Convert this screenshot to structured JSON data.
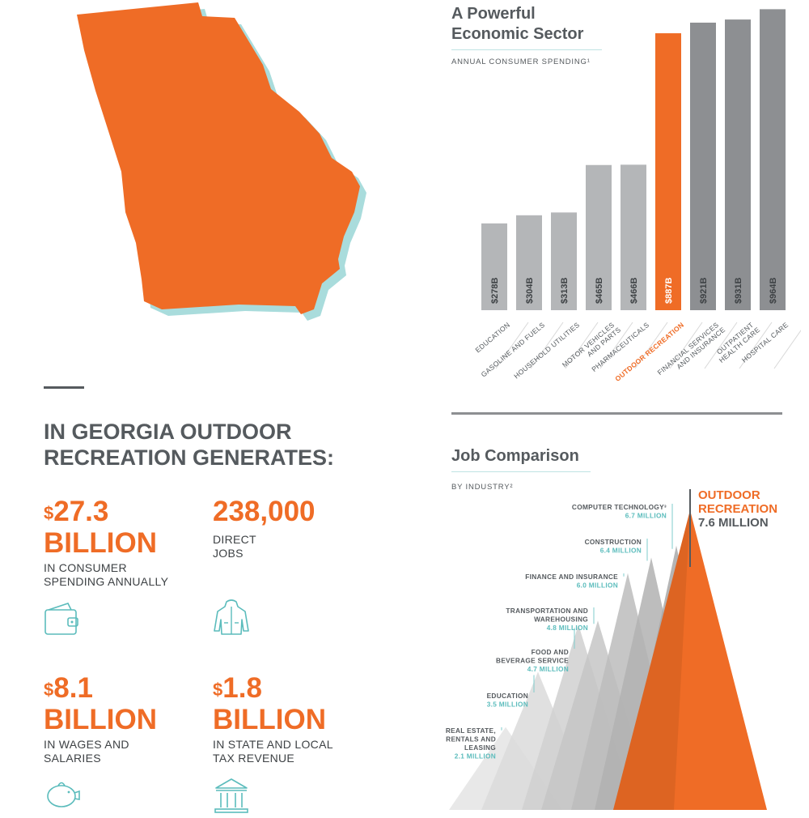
{
  "colors": {
    "orange": "#ef6c26",
    "gray_dark": "#555a5e",
    "gray_bar": "#b4b6b8",
    "gray_bar_dark": "#8d8f92",
    "teal": "#5bbcbc"
  },
  "headline": {
    "line1": "IN GEORGIA OUTDOOR",
    "line2": "RECREATION GENERATES:"
  },
  "stats": [
    {
      "dollar": "$",
      "amount": "27.3",
      "unit": "BILLION",
      "caption1": "IN CONSUMER",
      "caption2": "SPENDING ANNUALLY",
      "icon": "wallet-icon"
    },
    {
      "dollar": "",
      "amount": "238,000",
      "unit": "",
      "caption1": "DIRECT",
      "caption2": "JOBS",
      "icon": "rain-jacket-icon"
    },
    {
      "dollar": "$",
      "amount": "8.1",
      "unit": "BILLION",
      "caption1": "IN WAGES AND",
      "caption2": "SALARIES",
      "icon": "piggy-bank-icon"
    },
    {
      "dollar": "$",
      "amount": "1.8",
      "unit": "BILLION",
      "caption1": "IN STATE AND LOCAL",
      "caption2": "TAX REVENUE",
      "icon": "government-building-icon"
    }
  ],
  "chart_data": [
    {
      "type": "bar",
      "title": "A Powerful Economic Sector",
      "title_line1": "A Powerful",
      "title_line2": "Economic Sector",
      "subtitle": "ANNUAL CONSUMER SPENDING¹",
      "unit": "billion USD",
      "categories": [
        "EDUCATION",
        "GASOLINE AND FUELS",
        "HOUSEHOLD UTILITIES",
        "MOTOR VEHICLES AND PARTS",
        "PHARMACEUTICALS",
        "OUTDOOR RECREATION",
        "FINANCIAL SERVICES AND INSURANCE",
        "OUTPATIENT HEALTH CARE",
        "HOSPITAL CARE"
      ],
      "category_lines": [
        [
          "EDUCATION"
        ],
        [
          "GASOLINE AND FUELS"
        ],
        [
          "HOUSEHOLD UTILITIES"
        ],
        [
          "MOTOR VEHICLES",
          "AND PARTS"
        ],
        [
          "PHARMACEUTICALS"
        ],
        [
          "OUTDOOR RECREATION"
        ],
        [
          "FINANCIAL SERVICES",
          "AND INSURANCE"
        ],
        [
          "OUTPATIENT",
          "HEALTH CARE"
        ],
        [
          "HOSPITAL CARE"
        ]
      ],
      "values": [
        278,
        304,
        313,
        465,
        466,
        887,
        921,
        931,
        964
      ],
      "value_labels": [
        "$278B",
        "$304B",
        "$313B",
        "$465B",
        "$466B",
        "$887B",
        "$921B",
        "$931B",
        "$964B"
      ],
      "highlight": "OUTDOOR RECREATION"
    },
    {
      "type": "area",
      "title": "Job Comparison",
      "subtitle": "BY INDUSTRY²",
      "unit": "million jobs",
      "series": [
        {
          "name_lines": [
            "REAL ESTATE,",
            "RENTALS AND",
            "LEASING"
          ],
          "value": 2.1,
          "value_label": "2.1 MILLION"
        },
        {
          "name_lines": [
            "EDUCATION"
          ],
          "value": 3.5,
          "value_label": "3.5 MILLION"
        },
        {
          "name_lines": [
            "FOOD AND",
            "BEVERAGE SERVICE"
          ],
          "value": 4.7,
          "value_label": "4.7 MILLION"
        },
        {
          "name_lines": [
            "TRANSPORTATION AND",
            "WAREHOUSING"
          ],
          "value": 4.8,
          "value_label": "4.8 MILLION"
        },
        {
          "name_lines": [
            "FINANCE AND INSURANCE"
          ],
          "value": 6.0,
          "value_label": "6.0 MILLION"
        },
        {
          "name_lines": [
            "CONSTRUCTION"
          ],
          "value": 6.4,
          "value_label": "6.4 MILLION"
        },
        {
          "name_lines": [
            "COMPUTER TECHNOLOGY³"
          ],
          "value": 6.7,
          "value_label": "6.7 MILLION"
        }
      ],
      "highlight": {
        "name_line1": "OUTDOOR",
        "name_line2": "RECREATION",
        "value": 7.6,
        "value_label": "7.6 MILLION"
      }
    }
  ]
}
